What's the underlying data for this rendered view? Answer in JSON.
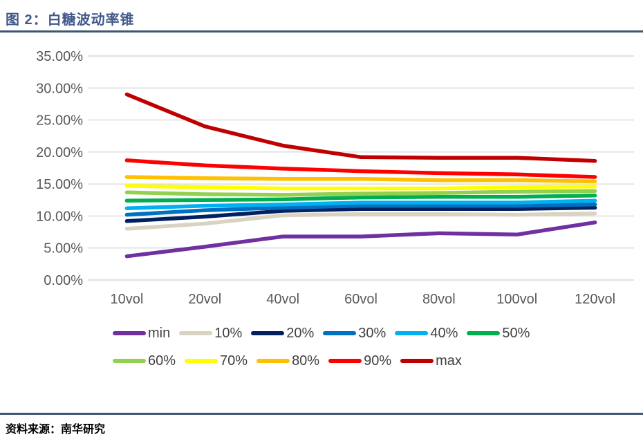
{
  "header": {
    "title": "图 2：白糖波动率锥"
  },
  "footer": {
    "source_label": "资料来源：南华研究"
  },
  "colors": {
    "title_text": "#41588A",
    "divider_rule": "#3E5672",
    "grid_line": "#D9D9D9",
    "axis_text": "#595959",
    "legend_text": "#404040",
    "background": "#FFFFFF"
  },
  "chart_data": {
    "type": "line",
    "title": "",
    "xlabel": "",
    "ylabel": "",
    "ylim": [
      0,
      35
    ],
    "ytick_step": 5,
    "ytick_labels": [
      "0.00%",
      "5.00%",
      "10.00%",
      "15.00%",
      "20.00%",
      "25.00%",
      "30.00%",
      "35.00%"
    ],
    "grid": "horizontal",
    "legend_position": "bottom",
    "categories": [
      "10vol",
      "20vol",
      "40vol",
      "60vol",
      "80vol",
      "100vol",
      "120vol"
    ],
    "series": [
      {
        "name": "min",
        "color": "#7030A0",
        "values": [
          3.7,
          5.2,
          6.8,
          6.8,
          7.3,
          7.1,
          9.0
        ]
      },
      {
        "name": "10%",
        "color": "#D9D3C1",
        "values": [
          8.0,
          8.8,
          10.1,
          10.3,
          10.3,
          10.2,
          10.4
        ]
      },
      {
        "name": "20%",
        "color": "#002060",
        "values": [
          9.2,
          9.9,
          10.8,
          11.1,
          11.1,
          11.1,
          11.3
        ]
      },
      {
        "name": "30%",
        "color": "#0070C0",
        "values": [
          10.2,
          10.9,
          11.3,
          11.6,
          11.6,
          11.6,
          11.8
        ]
      },
      {
        "name": "40%",
        "color": "#00B0F0",
        "values": [
          11.2,
          11.6,
          11.8,
          12.1,
          12.1,
          12.1,
          12.4
        ]
      },
      {
        "name": "50%",
        "color": "#00B050",
        "values": [
          12.4,
          12.5,
          12.6,
          12.9,
          13.0,
          13.0,
          13.2
        ]
      },
      {
        "name": "60%",
        "color": "#92D050",
        "values": [
          13.7,
          13.4,
          13.3,
          13.5,
          13.6,
          13.8,
          13.9
        ]
      },
      {
        "name": "70%",
        "color": "#FFFF00",
        "values": [
          14.7,
          14.5,
          14.3,
          14.3,
          14.3,
          14.5,
          14.6
        ]
      },
      {
        "name": "80%",
        "color": "#FFC000",
        "values": [
          16.1,
          15.9,
          15.8,
          15.8,
          15.6,
          15.6,
          15.4
        ]
      },
      {
        "name": "90%",
        "color": "#FF0000",
        "values": [
          18.7,
          17.9,
          17.4,
          17.0,
          16.7,
          16.5,
          16.1
        ]
      },
      {
        "name": "max",
        "color": "#C00000",
        "values": [
          29.0,
          24.0,
          21.0,
          19.2,
          19.1,
          19.1,
          18.6
        ]
      }
    ]
  }
}
